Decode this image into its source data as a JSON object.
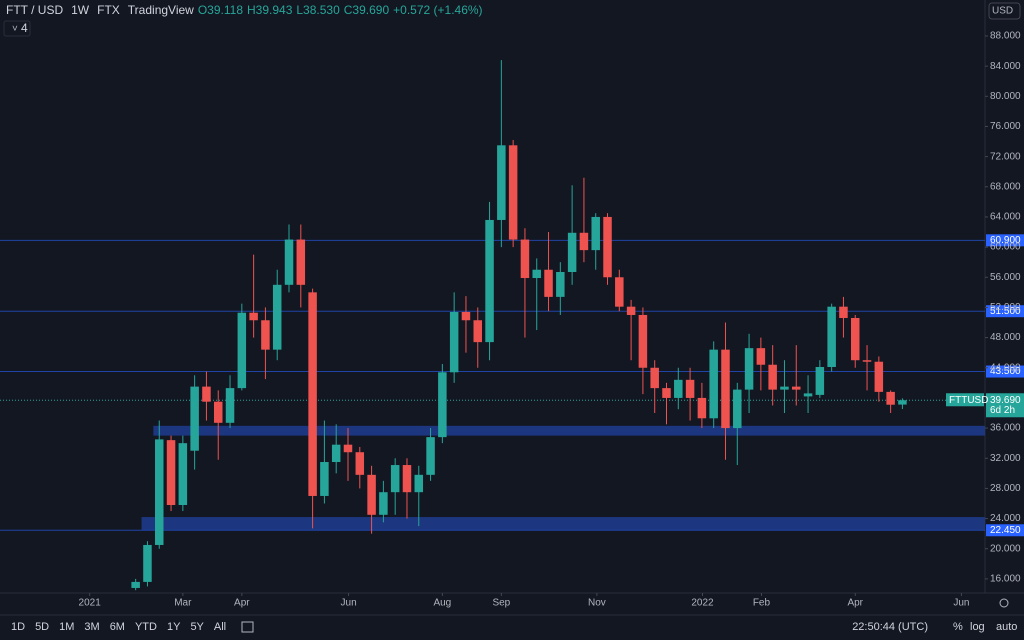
{
  "header": {
    "symbol": "FTT / USD",
    "interval": "1W",
    "exchange": "FTX",
    "source": "TradingView",
    "ohlc": [
      "O39.118",
      "H39.943",
      "L38.530",
      "C39.690"
    ],
    "change": "+0.572 (+1.46%)",
    "indicator_count": "4",
    "currency": "USD"
  },
  "chart_data": {
    "type": "candlestick",
    "open": [
      14.8,
      15.6,
      20.5,
      34.4,
      25.8,
      33,
      41.5,
      39.5,
      36.7,
      41.3,
      51.3,
      50.3,
      46.4,
      55,
      61,
      54,
      27,
      31.5,
      33.8,
      32.8,
      29.8,
      24.5,
      27.5,
      31.1,
      27.5,
      29.8,
      34.8,
      43.4,
      51.4,
      50.3,
      47.4,
      63.6,
      73.5,
      61,
      55.9,
      57,
      53.4,
      56.7,
      61.9,
      59.6,
      64,
      56,
      52.1,
      51,
      44,
      41.3,
      40,
      42.4,
      40,
      37.3,
      46.4,
      36,
      41.1,
      46.6,
      44.4,
      41.1,
      41.5,
      40.2,
      40.4,
      44.1,
      52.1,
      50.6,
      45,
      44.8,
      40.8,
      39.118
    ],
    "high": [
      16,
      21,
      37,
      35,
      35,
      43,
      43.5,
      41,
      43,
      52.5,
      59,
      52,
      57,
      63,
      63,
      54.5,
      37,
      36.5,
      36,
      33.5,
      31,
      29,
      32,
      32,
      31,
      36,
      44.5,
      54,
      53.5,
      52,
      66,
      84.8,
      74.2,
      62.5,
      58.5,
      62,
      58,
      68.2,
      69.2,
      64.5,
      64.5,
      57,
      53,
      52,
      45,
      42,
      44,
      44,
      42,
      47.5,
      50,
      42,
      48.5,
      48,
      47,
      45,
      47,
      43,
      45,
      52.5,
      53.4,
      51,
      47,
      45.5,
      41,
      39.943
    ],
    "low": [
      14.5,
      15,
      20,
      25,
      25,
      30.5,
      37,
      31.8,
      36,
      41,
      48,
      42.5,
      45,
      54,
      52,
      22.7,
      26,
      30,
      29,
      28,
      22,
      23.5,
      24.5,
      24,
      23,
      29,
      34,
      42,
      46,
      44,
      45,
      60,
      60,
      48,
      49,
      51.5,
      51,
      55,
      58,
      57,
      55,
      51.5,
      45,
      40.5,
      38,
      36.5,
      38.5,
      37,
      36,
      36,
      31.8,
      31.1,
      38,
      41,
      39,
      38,
      39,
      38,
      40,
      43.5,
      48,
      44,
      41,
      39.5,
      38,
      38.53
    ],
    "close": [
      15.6,
      20.5,
      34.5,
      25.8,
      34,
      41.5,
      39.5,
      36.7,
      41.3,
      51.3,
      50.3,
      46.4,
      55,
      61,
      55,
      27,
      31.5,
      33.8,
      32.8,
      29.8,
      24.5,
      27.5,
      31.1,
      27.5,
      29.8,
      34.8,
      43.4,
      51.4,
      50.3,
      47.4,
      63.6,
      73.5,
      61,
      55.9,
      57,
      53.4,
      56.7,
      61.9,
      59.6,
      64,
      56,
      52.1,
      51,
      44,
      41.3,
      40,
      42.4,
      40,
      37.3,
      46.4,
      36,
      41.1,
      46.6,
      44.4,
      41.1,
      41.5,
      41.1,
      40.6,
      44.1,
      52.1,
      50.6,
      45,
      44.8,
      40.8,
      39.1,
      39.69
    ],
    "up_color": "#26a69a",
    "down_color": "#ef5350",
    "xlim": [
      -11.5,
      72
    ],
    "xticks": [
      {
        "value": -3.9,
        "label": "2021"
      },
      {
        "value": 4,
        "label": "Mar"
      },
      {
        "value": 9,
        "label": "Apr"
      },
      {
        "value": 18.05,
        "label": "Jun"
      },
      {
        "value": 26,
        "label": "Aug"
      },
      {
        "value": 31,
        "label": "Sep"
      },
      {
        "value": 39.1,
        "label": "Nov"
      },
      {
        "value": 48.05,
        "label": "2022"
      },
      {
        "value": 53.05,
        "label": "Feb"
      },
      {
        "value": 61,
        "label": "Apr"
      },
      {
        "value": 70,
        "label": "Jun"
      }
    ],
    "ylim": [
      14.13,
      92.77
    ],
    "yticks": [
      {
        "value": 16,
        "label": "16.000"
      },
      {
        "value": 20,
        "label": "20.000"
      },
      {
        "value": 24,
        "label": "24.000"
      },
      {
        "value": 28,
        "label": "28.000"
      },
      {
        "value": 32,
        "label": "32.000"
      },
      {
        "value": 36,
        "label": "36.000"
      },
      {
        "value": 40,
        "label": "40.000"
      },
      {
        "value": 44,
        "label": "44.000"
      },
      {
        "value": 48,
        "label": "48.000"
      },
      {
        "value": 52,
        "label": "52.000"
      },
      {
        "value": 56,
        "label": "56.000"
      },
      {
        "value": 60,
        "label": "60.000"
      },
      {
        "value": 64,
        "label": "64.000"
      },
      {
        "value": 68,
        "label": "68.000"
      },
      {
        "value": 72,
        "label": "72.000"
      },
      {
        "value": 76,
        "label": "76.000"
      },
      {
        "value": 80,
        "label": "80.000"
      },
      {
        "value": 84,
        "label": "84.000"
      },
      {
        "value": 88,
        "label": "88.000"
      }
    ],
    "grid": false,
    "levels": [
      {
        "value": 60.9,
        "label": "60.900"
      },
      {
        "value": 51.5,
        "label": "51.500"
      },
      {
        "value": 43.5,
        "label": "43.500"
      },
      {
        "value": 22.45,
        "label": "22.450"
      }
    ],
    "zones": [
      {
        "low": 35.0,
        "high": 36.3,
        "start": 2
      },
      {
        "low": 22.5,
        "high": 24.2,
        "start": 1
      }
    ],
    "zone_color": "#1e3a8a",
    "level_color": "#2962ff",
    "last_price": {
      "value": 39.69,
      "label": "39.690",
      "symbol": "FTTUSD",
      "countdown": "6d 2h"
    }
  },
  "footer": {
    "ranges": [
      "1D",
      "5D",
      "1M",
      "3M",
      "6M",
      "YTD",
      "1Y",
      "5Y",
      "All"
    ],
    "time": "22:50:44 (UTC)",
    "percent": "%",
    "log": "log",
    "auto": "auto"
  }
}
